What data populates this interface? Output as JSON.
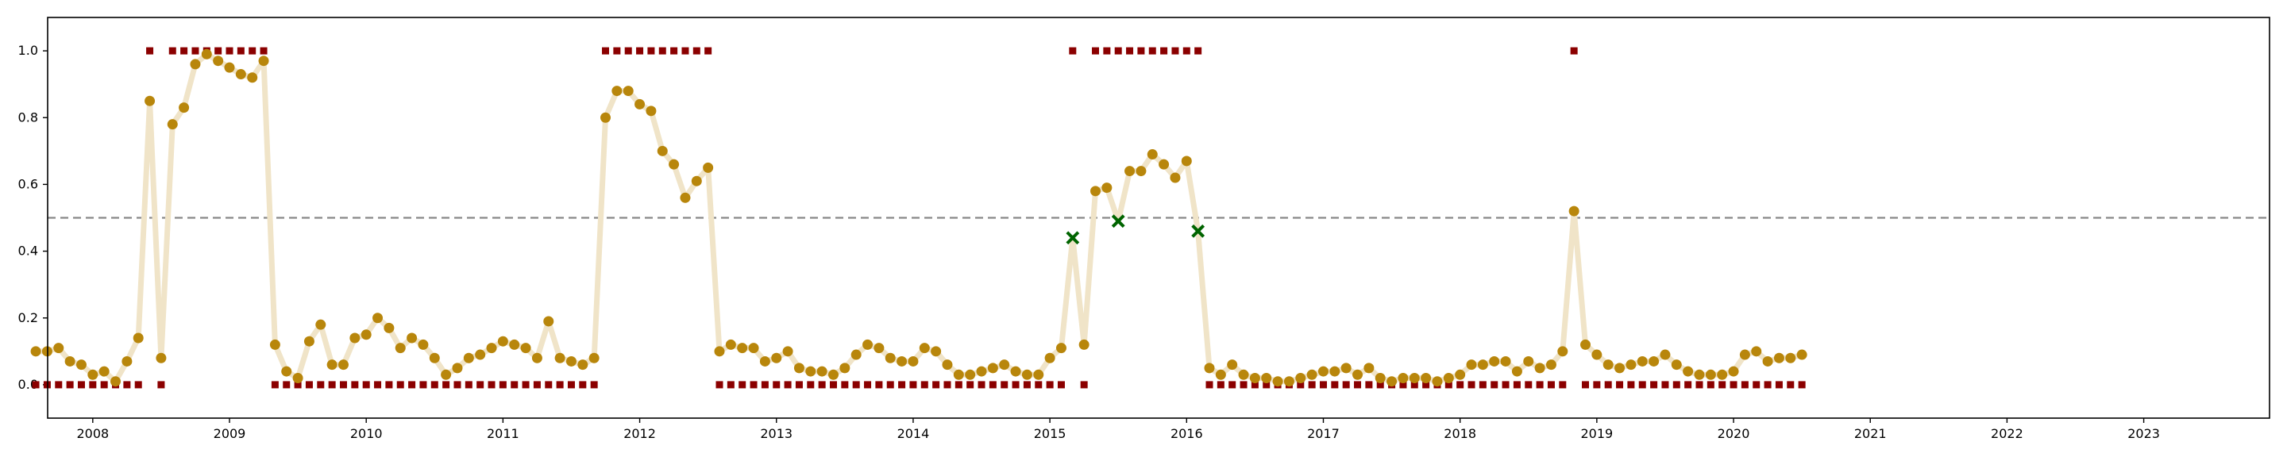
{
  "chart_data": {
    "type": "scatter",
    "title": "",
    "xlabel": "",
    "ylabel": "",
    "xlim": [
      2007.67,
      2023.92
    ],
    "ylim": [
      -0.1,
      1.1
    ],
    "grid": false,
    "legend": "none",
    "threshold": 0.5,
    "colors": {
      "line": "#f0e4c8",
      "probability": "#b8860b",
      "label": "#8b0000",
      "mismatch": "#006400",
      "threshold": "#888888",
      "axis": "#000000"
    },
    "x_ticks": [
      "2008",
      "2009",
      "2010",
      "2011",
      "2012",
      "2013",
      "2014",
      "2015",
      "2016",
      "2017",
      "2018",
      "2019",
      "2020",
      "2021",
      "2022",
      "2023"
    ],
    "y_ticks": [
      "0.0",
      "0.2",
      "0.4",
      "0.6",
      "0.8",
      "1.0"
    ],
    "start_month": "2007-08",
    "probability": [
      0.1,
      0.1,
      0.11,
      0.07,
      0.06,
      0.03,
      0.04,
      0.01,
      0.07,
      0.14,
      0.85,
      0.08,
      0.78,
      0.83,
      0.96,
      0.99,
      0.97,
      0.95,
      0.93,
      0.92,
      0.97,
      0.12,
      0.04,
      0.02,
      0.13,
      0.18,
      0.06,
      0.06,
      0.14,
      0.15,
      0.2,
      0.17,
      0.11,
      0.14,
      0.12,
      0.08,
      0.03,
      0.05,
      0.08,
      0.09,
      0.11,
      0.13,
      0.12,
      0.11,
      0.08,
      0.19,
      0.08,
      0.07,
      0.06,
      0.08,
      0.8,
      0.88,
      0.88,
      0.84,
      0.82,
      0.7,
      0.66,
      0.56,
      0.61,
      0.65,
      0.1,
      0.12,
      0.11,
      0.11,
      0.07,
      0.08,
      0.1,
      0.05,
      0.04,
      0.04,
      0.03,
      0.05,
      0.09,
      0.12,
      0.11,
      0.08,
      0.07,
      0.07,
      0.11,
      0.1,
      0.06,
      0.03,
      0.03,
      0.04,
      0.05,
      0.06,
      0.04,
      0.03,
      0.03,
      0.08,
      0.11,
      0.44,
      0.12,
      0.58,
      0.59,
      0.49,
      0.64,
      0.64,
      0.69,
      0.66,
      0.62,
      0.67,
      0.46,
      0.05,
      0.03,
      0.06,
      0.03,
      0.02,
      0.02,
      0.01,
      0.01,
      0.02,
      0.03,
      0.04,
      0.04,
      0.05,
      0.03,
      0.05,
      0.02,
      0.01,
      0.02,
      0.02,
      0.02,
      0.01,
      0.02,
      0.03,
      0.06,
      0.06,
      0.07,
      0.07,
      0.04,
      0.07,
      0.05,
      0.06,
      0.1,
      0.52,
      0.12,
      0.09,
      0.06,
      0.05,
      0.06,
      0.07,
      0.07,
      0.09,
      0.06,
      0.04,
      0.03,
      0.03,
      0.03,
      0.04,
      0.09,
      0.1,
      0.07,
      0.08,
      0.08,
      0.09
    ],
    "label": [
      0,
      0,
      0,
      0,
      0,
      0,
      0,
      0,
      0,
      0,
      1,
      0,
      1,
      1,
      1,
      1,
      1,
      1,
      1,
      1,
      1,
      0,
      0,
      0,
      0,
      0,
      0,
      0,
      0,
      0,
      0,
      0,
      0,
      0,
      0,
      0,
      0,
      0,
      0,
      0,
      0,
      0,
      0,
      0,
      0,
      0,
      0,
      0,
      0,
      0,
      1,
      1,
      1,
      1,
      1,
      1,
      1,
      1,
      1,
      1,
      0,
      0,
      0,
      0,
      0,
      0,
      0,
      0,
      0,
      0,
      0,
      0,
      0,
      0,
      0,
      0,
      0,
      0,
      0,
      0,
      0,
      0,
      0,
      0,
      0,
      0,
      0,
      0,
      0,
      0,
      0,
      1,
      0,
      1,
      1,
      1,
      1,
      1,
      1,
      1,
      1,
      1,
      1,
      0,
      0,
      0,
      0,
      0,
      0,
      0,
      0,
      0,
      0,
      0,
      0,
      0,
      0,
      0,
      0,
      0,
      0,
      0,
      0,
      0,
      0,
      0,
      0,
      0,
      0,
      0,
      0,
      0,
      0,
      0,
      0,
      1,
      0,
      0,
      0,
      0,
      0,
      0,
      0,
      0,
      0,
      0,
      0,
      0,
      0,
      0,
      0,
      0,
      0,
      0,
      0,
      0
    ],
    "mismatch": [
      91,
      95,
      102
    ]
  }
}
